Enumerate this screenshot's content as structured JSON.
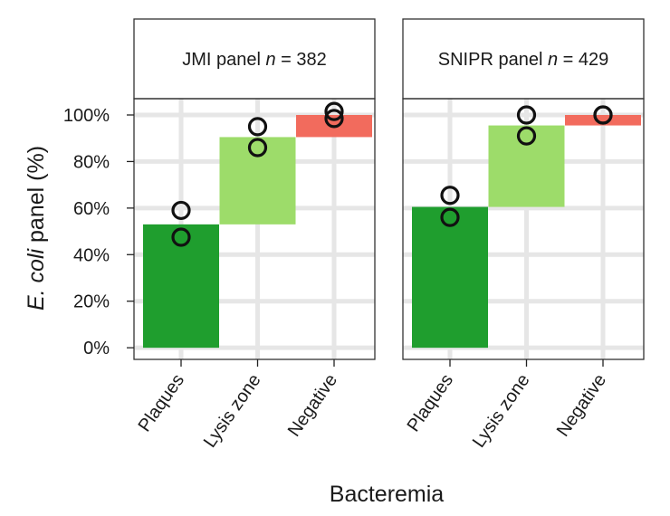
{
  "figure": {
    "ylabel_italic": "E. coli",
    "ylabel_rest": " panel (%)",
    "xlabel": "Bacteremia"
  },
  "colors": {
    "Plaques": "#1f9e2e",
    "Lysis zone": "#9ddc6a",
    "Negative": "#f26b5d",
    "grid": "#e6e6e6",
    "frame": "#333333"
  },
  "chart_data": [
    {
      "type": "bar",
      "subtype": "waterfall",
      "title": "JMI panel n = 382",
      "title_prefix": "JMI panel ",
      "title_n": "n",
      "title_suffix": " = 382",
      "categories": [
        "Plaques",
        "Lysis zone",
        "Negative"
      ],
      "floating_bars": [
        {
          "category": "Plaques",
          "start": 0,
          "end": 53
        },
        {
          "category": "Lysis zone",
          "start": 53,
          "end": 90.5
        },
        {
          "category": "Negative",
          "start": 90.5,
          "end": 100
        }
      ],
      "points": [
        {
          "category": "Plaques",
          "values": [
            59,
            47.5
          ]
        },
        {
          "category": "Lysis zone",
          "values": [
            95,
            86
          ]
        },
        {
          "category": "Negative",
          "values": [
            101.5,
            98.5
          ]
        }
      ],
      "y_ticks": [
        "0%",
        "20%",
        "40%",
        "60%",
        "80%",
        "100%"
      ],
      "ylim": [
        -5,
        107
      ],
      "grid": true
    },
    {
      "type": "bar",
      "subtype": "waterfall",
      "title": "SNIPR panel n = 429",
      "title_prefix": "SNIPR panel ",
      "title_n": "n",
      "title_suffix": " = 429",
      "categories": [
        "Plaques",
        "Lysis zone",
        "Negative"
      ],
      "floating_bars": [
        {
          "category": "Plaques",
          "start": 0,
          "end": 60.5
        },
        {
          "category": "Lysis zone",
          "start": 60.5,
          "end": 95.5
        },
        {
          "category": "Negative",
          "start": 95.5,
          "end": 100
        }
      ],
      "points": [
        {
          "category": "Plaques",
          "values": [
            65.5,
            56
          ]
        },
        {
          "category": "Lysis zone",
          "values": [
            100,
            91
          ]
        },
        {
          "category": "Negative",
          "values": [
            100,
            100
          ]
        }
      ],
      "y_ticks": [
        "0%",
        "20%",
        "40%",
        "60%",
        "80%",
        "100%"
      ],
      "ylim": [
        -5,
        107
      ],
      "grid": true
    }
  ]
}
